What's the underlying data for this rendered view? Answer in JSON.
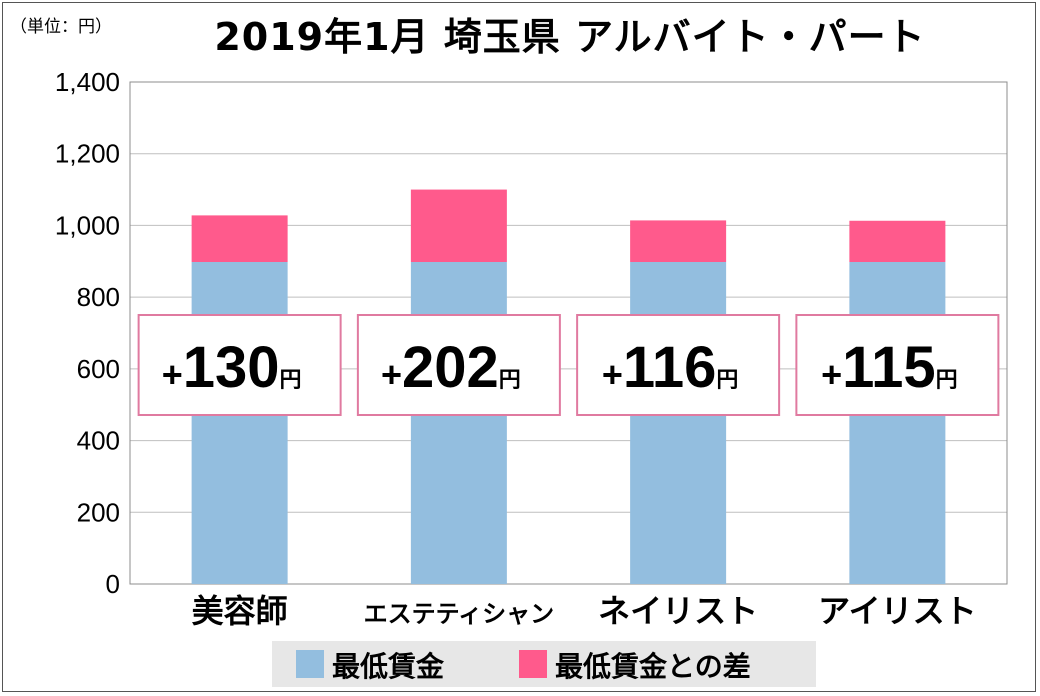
{
  "unit_label": "（単位：円）",
  "colors": {
    "base": "#93bedf",
    "diff": "#ff5a8c",
    "callout_border": "#e07aa0",
    "grid": "#bfbfbf"
  },
  "chart_data": {
    "type": "bar",
    "stacked": true,
    "title": "2019年1月 埼玉県 アルバイト・パート",
    "categories": [
      "美容師",
      "エステティシャン",
      "ネイリスト",
      "アイリスト"
    ],
    "ylim": [
      0,
      1400
    ],
    "yticks": [
      0,
      200,
      400,
      600,
      800,
      1000,
      1200,
      1400
    ],
    "ytick_labels": [
      "0",
      "200",
      "400",
      "600",
      "800",
      "1,000",
      "1,200",
      "1,400"
    ],
    "grid": true,
    "legend_position": "bottom",
    "series": [
      {
        "name": "最低賃金",
        "values": [
          898,
          898,
          898,
          898
        ]
      },
      {
        "name": "最低賃金との差",
        "values": [
          130,
          202,
          116,
          115
        ]
      }
    ],
    "callouts": [
      {
        "prefix": "+",
        "value": "130",
        "unit": "円"
      },
      {
        "prefix": "+",
        "value": "202",
        "unit": "円"
      },
      {
        "prefix": "+",
        "value": "116",
        "unit": "円"
      },
      {
        "prefix": "+",
        "value": "115",
        "unit": "円"
      }
    ]
  }
}
